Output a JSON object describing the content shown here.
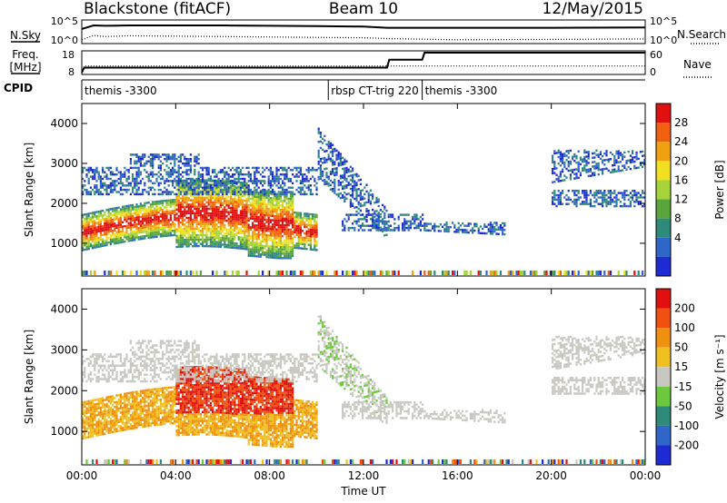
{
  "header": {
    "station": "Blackstone (fitACF)",
    "beam": "Beam 10",
    "date": "12/May/2015"
  },
  "noise_panel": {
    "left_label": "N.Sky",
    "left_ticks": [
      "10^5",
      "10^0"
    ],
    "right_label": "N.Search",
    "right_ticks": [
      "10^5",
      "10^0"
    ]
  },
  "freq_panel": {
    "left_label_1": "Freq.",
    "left_label_2": "[MHz]",
    "left_ticks": [
      "18",
      "8"
    ],
    "right_label": "Nave",
    "right_ticks": [
      "60",
      "0"
    ]
  },
  "cpid": {
    "label": "CPID",
    "segments": [
      {
        "start_hour": 0.0,
        "name": "themis -3300"
      },
      {
        "start_hour": 10.5,
        "name": "rbsp CT-trig 220"
      },
      {
        "start_hour": 14.5,
        "name": "themis -3300"
      }
    ]
  },
  "x_axis": {
    "label": "Time UT",
    "ticks": [
      "00:00",
      "04:00",
      "08:00",
      "12:00",
      "16:00",
      "20:00",
      "00:00"
    ],
    "range_hours": [
      0,
      24
    ]
  },
  "power_panel": {
    "ylabel": "Slant Range [km]",
    "yticks": [
      "4000",
      "3000",
      "2000",
      "1000"
    ],
    "colorbar_label": "Power [dB]",
    "colorbar_ticks": [
      "28",
      "24",
      "20",
      "16",
      "12",
      "8",
      "4"
    ],
    "colors": [
      "#1e2bd2",
      "#2f66c8",
      "#2e8a7a",
      "#5aa43c",
      "#a6d23a",
      "#f0e020",
      "#f0a010",
      "#f06010",
      "#e01010"
    ]
  },
  "velocity_panel": {
    "ylabel": "Slant Range [km]",
    "yticks": [
      "4000",
      "3000",
      "2000",
      "1000"
    ],
    "colorbar_label": "Velocity [m s⁻¹]",
    "colorbar_ticks": [
      "200",
      "100",
      "50",
      "15",
      "-15",
      "-50",
      "-100",
      "-200"
    ],
    "colors": [
      "#1e2bd2",
      "#2f66c8",
      "#2e8a7a",
      "#6cc83c",
      "#c8c8c0",
      "#f0c020",
      "#f09010",
      "#f05010",
      "#e01010"
    ]
  },
  "chart_data": [
    {
      "type": "line",
      "title": "N.Sky / N.Search",
      "x_hours": [
        0,
        0.5,
        1,
        2,
        4,
        6,
        8,
        10,
        12,
        13,
        16,
        20,
        24
      ],
      "series": [
        {
          "name": "N.Sky",
          "log10_values": [
            3.2,
            4.1,
            4.0,
            4.1,
            4.1,
            4.1,
            4.0,
            3.9,
            3.8,
            3.5,
            3.5,
            3.5,
            3.6
          ]
        },
        {
          "name": "N.Search",
          "log10_values": [
            0.5,
            1.6,
            1.3,
            1.5,
            1.4,
            1.3,
            1.2,
            1.1,
            1.0,
            0.8,
            0.5,
            0.6,
            0.7
          ]
        }
      ]
    },
    {
      "type": "line",
      "title": "Freq. / Nave",
      "x_hours": [
        0,
        0.1,
        13.0,
        13.1,
        14.5,
        14.6,
        24
      ],
      "series": [
        {
          "name": "Freq. [MHz]",
          "values": [
            8,
            10.5,
            10.5,
            14.5,
            14.5,
            18,
            18
          ]
        },
        {
          "name": "Nave",
          "values": [
            0,
            20,
            20,
            20,
            20,
            20,
            20
          ]
        }
      ]
    }
  ]
}
